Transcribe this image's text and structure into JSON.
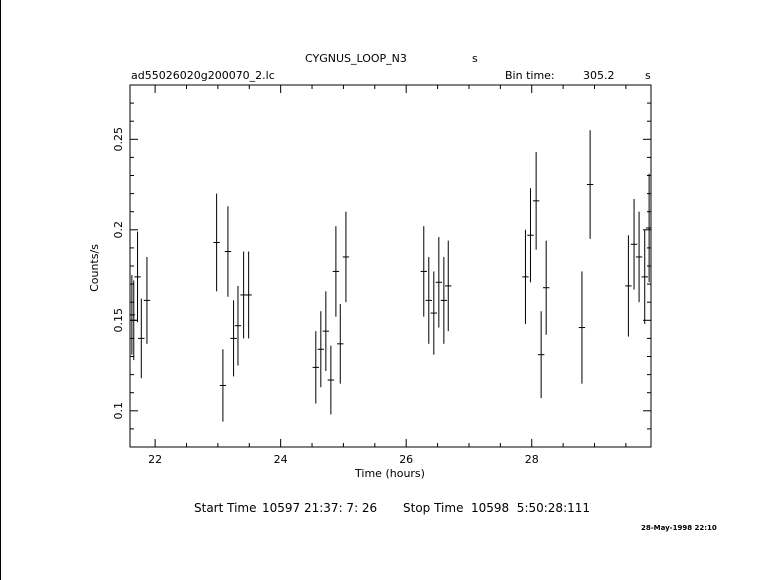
{
  "header": {
    "object_name": "CYGNUS_LOOP_N3",
    "object_unit": "s",
    "file_name": "ad55026020g200070_2.lc",
    "bin_time_label": "Bin time:",
    "bin_time_value": "305.2",
    "bin_time_unit": "s"
  },
  "footer": {
    "start_label": "Start Time",
    "start_value": "10597 21:37: 7: 26",
    "stop_label": "Stop Time",
    "stop_value": "10598  5:50:28:111",
    "timestamp": "28-May-1998 22:10"
  },
  "chart_data": {
    "type": "scatter",
    "title": "CYGNUS_LOOP_N3",
    "xlabel": "Time (hours)",
    "ylabel": "Counts/s",
    "xlim": [
      21.6,
      29.9
    ],
    "ylim": [
      0.08,
      0.28
    ],
    "xticks": [
      22,
      24,
      26,
      28
    ],
    "xtick_labels": [
      "22",
      "24",
      "26",
      "28"
    ],
    "yticks": [
      0.1,
      0.15,
      0.2,
      0.25
    ],
    "ytick_labels": [
      "0.1",
      "0.15",
      "0.2",
      "0.25"
    ],
    "points": [
      {
        "x": 21.63,
        "y": 0.153,
        "yerr": 0.022
      },
      {
        "x": 21.66,
        "y": 0.15,
        "yerr": 0.022
      },
      {
        "x": 21.72,
        "y": 0.174,
        "yerr": 0.025
      },
      {
        "x": 21.78,
        "y": 0.14,
        "yerr": 0.022
      },
      {
        "x": 21.87,
        "y": 0.161,
        "yerr": 0.024
      },
      {
        "x": 22.98,
        "y": 0.193,
        "yerr": 0.027
      },
      {
        "x": 23.08,
        "y": 0.114,
        "yerr": 0.02
      },
      {
        "x": 23.16,
        "y": 0.188,
        "yerr": 0.025
      },
      {
        "x": 23.25,
        "y": 0.14,
        "yerr": 0.021
      },
      {
        "x": 23.32,
        "y": 0.147,
        "yerr": 0.022
      },
      {
        "x": 23.41,
        "y": 0.164,
        "yerr": 0.024
      },
      {
        "x": 23.49,
        "y": 0.164,
        "yerr": 0.024
      },
      {
        "x": 24.56,
        "y": 0.124,
        "yerr": 0.02
      },
      {
        "x": 24.64,
        "y": 0.134,
        "yerr": 0.021
      },
      {
        "x": 24.72,
        "y": 0.144,
        "yerr": 0.022
      },
      {
        "x": 24.8,
        "y": 0.117,
        "yerr": 0.019
      },
      {
        "x": 24.88,
        "y": 0.177,
        "yerr": 0.025
      },
      {
        "x": 24.95,
        "y": 0.137,
        "yerr": 0.022
      },
      {
        "x": 25.04,
        "y": 0.185,
        "yerr": 0.025
      },
      {
        "x": 26.28,
        "y": 0.177,
        "yerr": 0.025
      },
      {
        "x": 26.36,
        "y": 0.161,
        "yerr": 0.024
      },
      {
        "x": 26.44,
        "y": 0.154,
        "yerr": 0.023
      },
      {
        "x": 26.52,
        "y": 0.171,
        "yerr": 0.025
      },
      {
        "x": 26.6,
        "y": 0.161,
        "yerr": 0.024
      },
      {
        "x": 26.67,
        "y": 0.169,
        "yerr": 0.025
      },
      {
        "x": 27.9,
        "y": 0.174,
        "yerr": 0.026
      },
      {
        "x": 27.98,
        "y": 0.197,
        "yerr": 0.026
      },
      {
        "x": 28.07,
        "y": 0.216,
        "yerr": 0.027
      },
      {
        "x": 28.15,
        "y": 0.131,
        "yerr": 0.024
      },
      {
        "x": 28.23,
        "y": 0.168,
        "yerr": 0.026
      },
      {
        "x": 28.8,
        "y": 0.146,
        "yerr": 0.031
      },
      {
        "x": 28.93,
        "y": 0.225,
        "yerr": 0.03
      },
      {
        "x": 29.54,
        "y": 0.169,
        "yerr": 0.028
      },
      {
        "x": 29.63,
        "y": 0.192,
        "yerr": 0.025
      },
      {
        "x": 29.71,
        "y": 0.185,
        "yerr": 0.025
      },
      {
        "x": 29.8,
        "y": 0.174,
        "yerr": 0.026
      },
      {
        "x": 29.87,
        "y": 0.201,
        "yerr": 0.03
      }
    ]
  }
}
